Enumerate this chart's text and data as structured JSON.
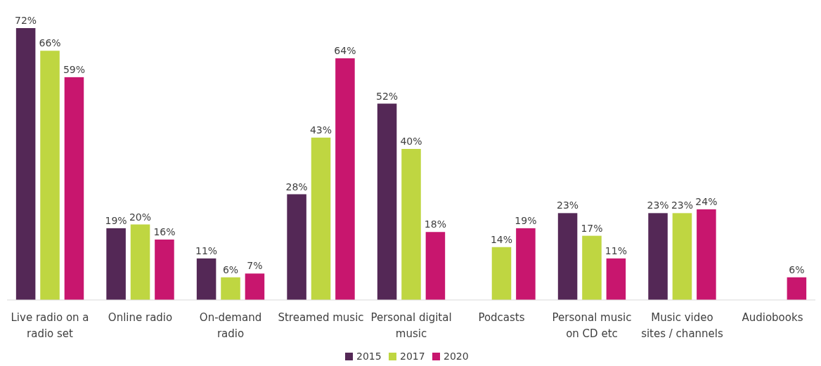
{
  "chart_data": {
    "type": "bar",
    "categories": [
      "Live radio on a radio set",
      "Online radio",
      "On-demand radio",
      "Streamed music",
      "Personal digital music",
      "Podcasts",
      "Personal music on CD etc",
      "Music video sites / channels",
      "Audiobooks"
    ],
    "series": [
      {
        "name": "2015",
        "color": "#542856",
        "values": [
          72,
          19,
          11,
          28,
          52,
          null,
          23,
          23,
          null
        ],
        "value_labels": [
          "72%",
          "19%",
          "11%",
          "28%",
          "52%",
          null,
          "23%",
          "23%",
          null
        ]
      },
      {
        "name": "2017",
        "color": "#bfd641",
        "values": [
          66,
          20,
          6,
          43,
          40,
          14,
          17,
          23,
          null
        ],
        "value_labels": [
          "66%",
          "20%",
          "6%",
          "43%",
          "40%",
          "14%",
          "17%",
          "23%",
          null
        ]
      },
      {
        "name": "2020",
        "color": "#c8166e",
        "values": [
          59,
          16,
          7,
          64,
          18,
          19,
          11,
          24,
          6
        ],
        "value_labels": [
          "59%",
          "16%",
          "7%",
          "64%",
          "18%",
          "19%",
          "11%",
          "24%",
          "6%"
        ]
      }
    ],
    "legend": "bottom"
  }
}
